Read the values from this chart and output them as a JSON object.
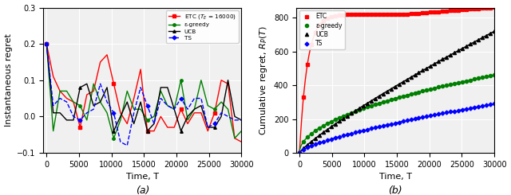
{
  "title_a": "(a)",
  "title_b": "(b)",
  "xlim": [
    -500,
    30000
  ],
  "ylim_a": [
    -0.1,
    0.3
  ],
  "ylim_b": [
    0,
    860
  ],
  "xlabel": "Time, T",
  "ylabel_a": "Instantaneous regret",
  "ylabel_b": "Cumulative regret, $R_P(T)$",
  "xticks": [
    0,
    5000,
    10000,
    15000,
    20000,
    25000,
    30000
  ],
  "yticks_a": [
    -0.1,
    0.0,
    0.1,
    0.2,
    0.3
  ],
  "yticks_b": [
    0,
    200,
    400,
    600,
    800
  ],
  "colors": {
    "ETC": "#ff0000",
    "epsilon": "#008000",
    "UCB": "#000000",
    "TS": "#0000ff"
  },
  "legend_a": [
    "ETC ($T_E$ = 16000)",
    "ε-greedy",
    "UCB",
    "TS"
  ],
  "legend_b": [
    "ETC",
    "ε-greedy",
    "UCB",
    "TS"
  ],
  "T_E": 16000,
  "T_max": 30000,
  "n_pts_a": 30,
  "n_markers_b": 50
}
